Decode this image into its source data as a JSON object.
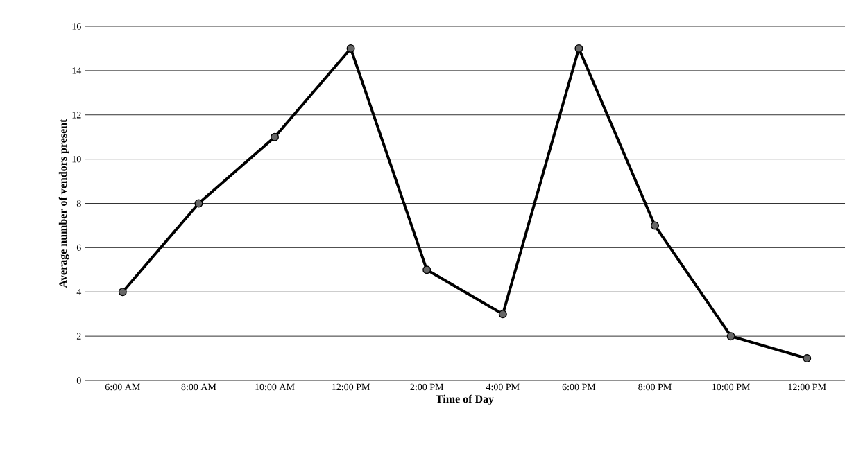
{
  "chart_data": {
    "type": "line",
    "xlabel": "Time of Day",
    "ylabel": "Average number of vendors present",
    "categories": [
      "6:00 AM",
      "8:00 AM",
      "10:00 AM",
      "12:00 PM",
      "2:00 PM",
      "4:00 PM",
      "6:00 PM",
      "8:00 PM",
      "10:00 PM",
      "12:00 PM"
    ],
    "series": [
      {
        "color": "#000000",
        "values": [
          4,
          8,
          11,
          15,
          5,
          3,
          15,
          7,
          2,
          1
        ]
      }
    ],
    "ylim": [
      0,
      16
    ],
    "yticks": [
      0,
      2,
      4,
      6,
      8,
      10,
      12,
      14,
      16
    ],
    "grid": "y",
    "marker": "circle",
    "line_style": "solid"
  }
}
